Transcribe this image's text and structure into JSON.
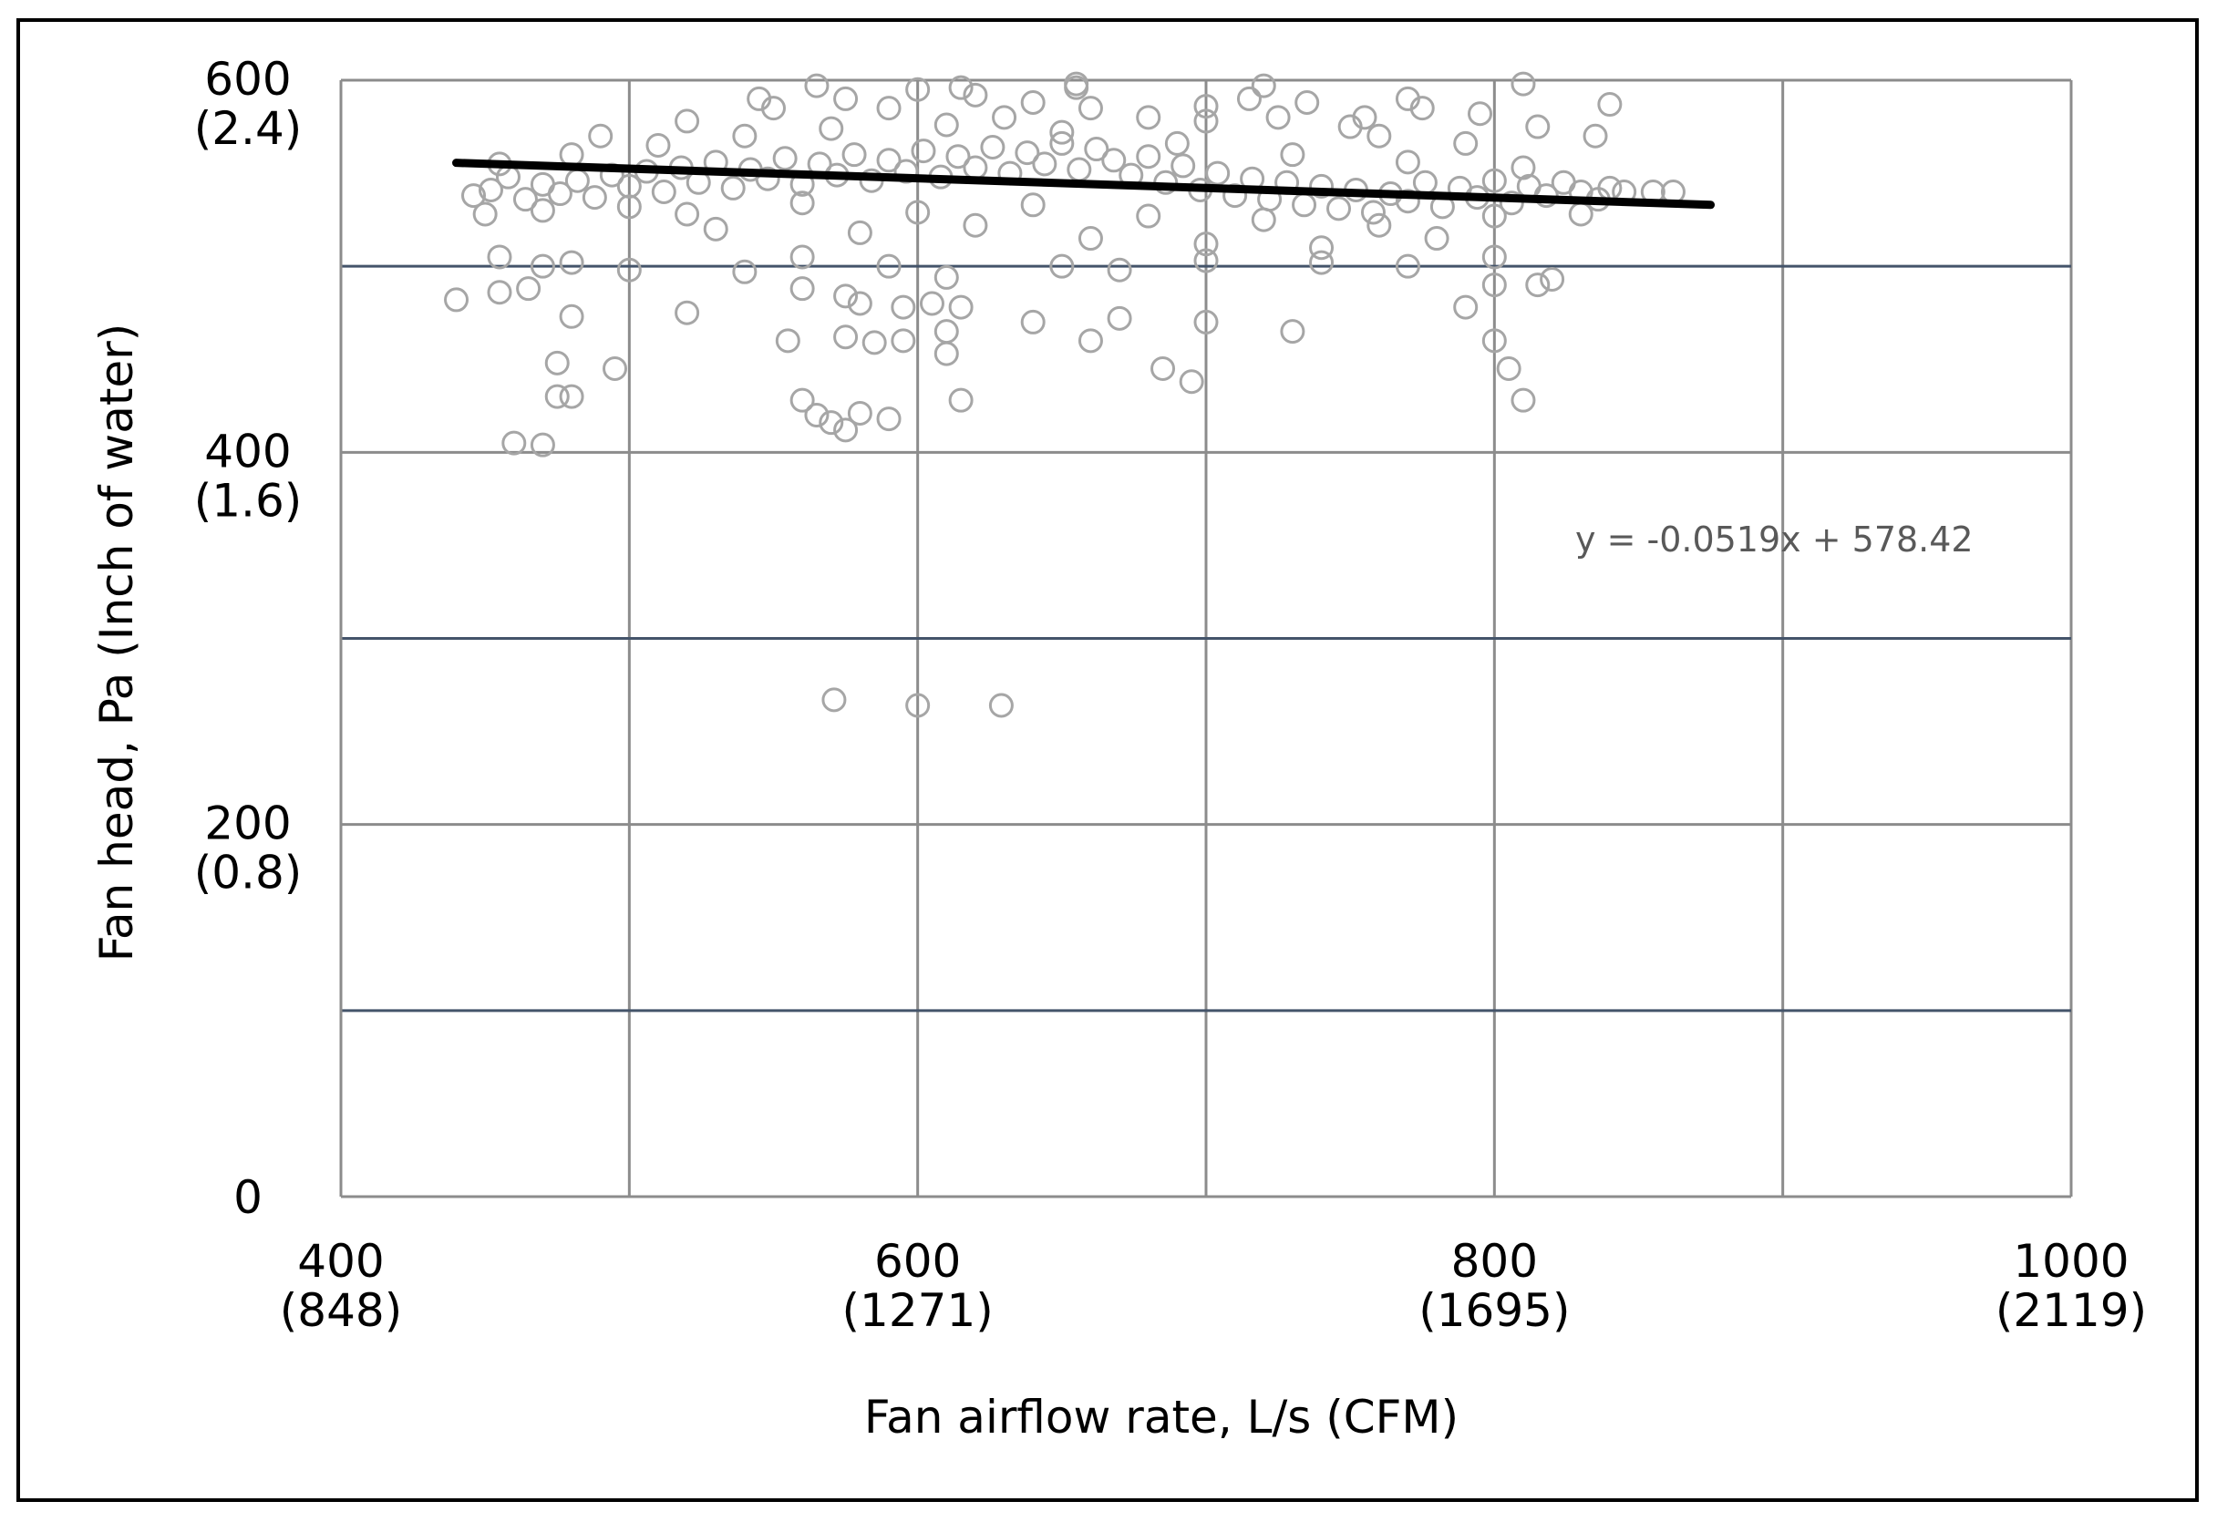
{
  "chart_data": {
    "type": "scatter",
    "xlabel": "Fan airflow rate, L/s (CFM)",
    "ylabel": "Fan head, Pa (Inch of water)",
    "xlim": [
      400,
      1000
    ],
    "ylim": [
      0,
      600
    ],
    "x_major_gridlines": [
      500,
      600,
      700,
      800,
      900,
      1000
    ],
    "y_major_gridlines": [
      100,
      200,
      300,
      400,
      500,
      600
    ],
    "x_ticks": [
      {
        "value": 400,
        "label": "400",
        "sublabel": "(848)"
      },
      {
        "value": 600,
        "label": "600",
        "sublabel": "(1271)"
      },
      {
        "value": 800,
        "label": "800",
        "sublabel": "(1695)"
      },
      {
        "value": 1000,
        "label": "1000",
        "sublabel": "(2119)"
      }
    ],
    "y_ticks": [
      {
        "value": 0,
        "label": "0",
        "sublabel": ""
      },
      {
        "value": 200,
        "label": "200",
        "sublabel": "(0.8)"
      },
      {
        "value": 400,
        "label": "400",
        "sublabel": "(1.6)"
      },
      {
        "value": 600,
        "label": "600",
        "sublabel": "(2.4)"
      }
    ],
    "trendline": {
      "equation": "y = -0.0519x + 578.42",
      "slope": -0.0519,
      "intercept": 578.42,
      "x_range": [
        440,
        875
      ]
    },
    "marker_style": "open-circle",
    "marker_color": "#a6a6a6",
    "trend_color": "#000000",
    "grid": true,
    "legend": "none",
    "points": [
      [
        446,
        538
      ],
      [
        452,
        541
      ],
      [
        458,
        548
      ],
      [
        464,
        536
      ],
      [
        470,
        544
      ],
      [
        476,
        539
      ],
      [
        482,
        546
      ],
      [
        488,
        537
      ],
      [
        494,
        549
      ],
      [
        500,
        543
      ],
      [
        506,
        551
      ],
      [
        512,
        540
      ],
      [
        518,
        553
      ],
      [
        524,
        545
      ],
      [
        530,
        556
      ],
      [
        536,
        542
      ],
      [
        542,
        552
      ],
      [
        548,
        547
      ],
      [
        554,
        558
      ],
      [
        560,
        544
      ],
      [
        566,
        555
      ],
      [
        572,
        549
      ],
      [
        578,
        560
      ],
      [
        584,
        546
      ],
      [
        590,
        557
      ],
      [
        596,
        551
      ],
      [
        602,
        562
      ],
      [
        608,
        548
      ],
      [
        614,
        559
      ],
      [
        620,
        553
      ],
      [
        626,
        564
      ],
      [
        632,
        550
      ],
      [
        638,
        561
      ],
      [
        644,
        555
      ],
      [
        650,
        566
      ],
      [
        656,
        552
      ],
      [
        662,
        563
      ],
      [
        668,
        557
      ],
      [
        674,
        549
      ],
      [
        680,
        559
      ],
      [
        686,
        545
      ],
      [
        692,
        554
      ],
      [
        698,
        541
      ],
      [
        704,
        550
      ],
      [
        710,
        538
      ],
      [
        716,
        547
      ],
      [
        722,
        536
      ],
      [
        728,
        545
      ],
      [
        734,
        533
      ],
      [
        740,
        543
      ],
      [
        746,
        531
      ],
      [
        752,
        541
      ],
      [
        758,
        529
      ],
      [
        764,
        539
      ],
      [
        770,
        535
      ],
      [
        776,
        545
      ],
      [
        782,
        532
      ],
      [
        788,
        542
      ],
      [
        794,
        537
      ],
      [
        800,
        546
      ],
      [
        806,
        534
      ],
      [
        812,
        543
      ],
      [
        818,
        538
      ],
      [
        824,
        545
      ],
      [
        830,
        540
      ],
      [
        836,
        536
      ],
      [
        840,
        542
      ],
      [
        450,
        528
      ],
      [
        470,
        530
      ],
      [
        500,
        532
      ],
      [
        520,
        528
      ],
      [
        560,
        534
      ],
      [
        600,
        529
      ],
      [
        640,
        533
      ],
      [
        680,
        527
      ],
      [
        720,
        525
      ],
      [
        760,
        522
      ],
      [
        800,
        527
      ],
      [
        830,
        528
      ],
      [
        455,
        555
      ],
      [
        480,
        560
      ],
      [
        510,
        565
      ],
      [
        540,
        570
      ],
      [
        570,
        574
      ],
      [
        610,
        576
      ],
      [
        650,
        572
      ],
      [
        690,
        566
      ],
      [
        730,
        560
      ],
      [
        770,
        556
      ],
      [
        810,
        553
      ],
      [
        530,
        520
      ],
      [
        580,
        518
      ],
      [
        620,
        522
      ],
      [
        660,
        515
      ],
      [
        700,
        512
      ],
      [
        740,
        510
      ],
      [
        780,
        515
      ],
      [
        490,
        570
      ],
      [
        520,
        578
      ],
      [
        550,
        585
      ],
      [
        575,
        590
      ],
      [
        600,
        595
      ],
      [
        620,
        592
      ],
      [
        640,
        588
      ],
      [
        660,
        585
      ],
      [
        680,
        580
      ],
      [
        700,
        586
      ],
      [
        715,
        590
      ],
      [
        735,
        588
      ],
      [
        755,
        580
      ],
      [
        775,
        585
      ],
      [
        795,
        582
      ],
      [
        815,
        575
      ],
      [
        835,
        570
      ],
      [
        565,
        597
      ],
      [
        615,
        596
      ],
      [
        655,
        598
      ],
      [
        720,
        597
      ],
      [
        810,
        598
      ],
      [
        840,
        587
      ],
      [
        750,
        575
      ],
      [
        790,
        566
      ],
      [
        455,
        505
      ],
      [
        470,
        500
      ],
      [
        480,
        502
      ],
      [
        500,
        498
      ],
      [
        540,
        497
      ],
      [
        560,
        505
      ],
      [
        590,
        500
      ],
      [
        610,
        494
      ],
      [
        650,
        500
      ],
      [
        670,
        498
      ],
      [
        700,
        503
      ],
      [
        740,
        502
      ],
      [
        770,
        500
      ],
      [
        800,
        505
      ],
      [
        820,
        493
      ],
      [
        440,
        482
      ],
      [
        455,
        486
      ],
      [
        465,
        488
      ],
      [
        480,
        473
      ],
      [
        520,
        475
      ],
      [
        560,
        488
      ],
      [
        575,
        484
      ],
      [
        580,
        480
      ],
      [
        595,
        478
      ],
      [
        605,
        480
      ],
      [
        615,
        478
      ],
      [
        640,
        470
      ],
      [
        610,
        465
      ],
      [
        595,
        460
      ],
      [
        555,
        460
      ],
      [
        575,
        462
      ],
      [
        585,
        459
      ],
      [
        610,
        453
      ],
      [
        670,
        472
      ],
      [
        700,
        470
      ],
      [
        730,
        465
      ],
      [
        660,
        460
      ],
      [
        800,
        460
      ],
      [
        815,
        490
      ],
      [
        790,
        478
      ],
      [
        800,
        490
      ],
      [
        475,
        448
      ],
      [
        495,
        445
      ],
      [
        480,
        430
      ],
      [
        560,
        428
      ],
      [
        565,
        420
      ],
      [
        570,
        416
      ],
      [
        575,
        412
      ],
      [
        580,
        421
      ],
      [
        590,
        418
      ],
      [
        615,
        428
      ],
      [
        685,
        445
      ],
      [
        695,
        438
      ],
      [
        805,
        445
      ],
      [
        810,
        428
      ],
      [
        460,
        405
      ],
      [
        470,
        404
      ],
      [
        571,
        267
      ],
      [
        600,
        264
      ],
      [
        629,
        264
      ],
      [
        845,
        540
      ],
      [
        855,
        540
      ],
      [
        862,
        540
      ],
      [
        475,
        430
      ],
      [
        545,
        590
      ],
      [
        655,
        596
      ],
      [
        770,
        590
      ],
      [
        590,
        585
      ],
      [
        630,
        580
      ],
      [
        700,
        578
      ],
      [
        725,
        580
      ],
      [
        760,
        570
      ]
    ]
  }
}
